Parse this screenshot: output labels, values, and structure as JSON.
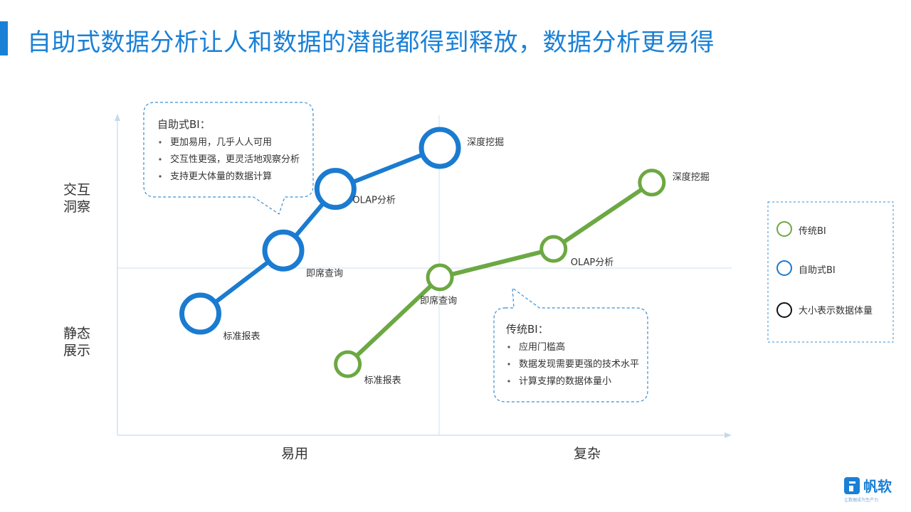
{
  "page": {
    "title": "自助式数据分析让人和数据的潜能都得到释放，数据分析更易得"
  },
  "chart_data": {
    "type": "line",
    "xlabel_categories": [
      "易用",
      "复杂"
    ],
    "ylabel_categories": [
      "交互洞察",
      "静态展示"
    ],
    "y_labels": {
      "top": [
        "交互",
        "洞察"
      ],
      "bottom": [
        "静态",
        "展示"
      ]
    },
    "size_meaning": "大小表示数据体量",
    "series": [
      {
        "name": "传统BI",
        "color": "#6ca843",
        "points": [
          {
            "label": "标准报表",
            "x": 0.375,
            "y": 0.225,
            "size": 1
          },
          {
            "label": "即席查询",
            "x": 0.525,
            "y": 0.5,
            "size": 1
          },
          {
            "label": "OLAP分析",
            "x": 0.71,
            "y": 0.59,
            "size": 1
          },
          {
            "label": "深度挖掘",
            "x": 0.87,
            "y": 0.8,
            "size": 1
          }
        ]
      },
      {
        "name": "自助式BI",
        "color": "#1a7bd0",
        "points": [
          {
            "label": "标准报表",
            "x": 0.135,
            "y": 0.385,
            "size": 2
          },
          {
            "label": "即席查询",
            "x": 0.27,
            "y": 0.585,
            "size": 2
          },
          {
            "label": "OLAP分析",
            "x": 0.355,
            "y": 0.78,
            "size": 2
          },
          {
            "label": "深度挖掘",
            "x": 0.525,
            "y": 0.91,
            "size": 2
          }
        ]
      }
    ]
  },
  "callouts": {
    "self_service": {
      "title": "自助式BI：",
      "items": [
        "更加易用，几乎人人可用",
        "交互性更强，更灵活地观察分析",
        "支持更大体量的数据计算"
      ]
    },
    "traditional": {
      "title": "传统BI：",
      "items": [
        "应用门槛高",
        "数据发现需要更强的技术水平",
        "计算支撑的数据体量小"
      ]
    }
  },
  "legend": {
    "items": [
      {
        "label": "传统BI",
        "color": "#6ca843"
      },
      {
        "label": "自助式BI",
        "color": "#1a7bd0"
      },
      {
        "label": "大小表示数据体量",
        "color": "#111111"
      }
    ]
  },
  "logo": {
    "name": "帆软",
    "tagline": "让数据成为生产力"
  }
}
